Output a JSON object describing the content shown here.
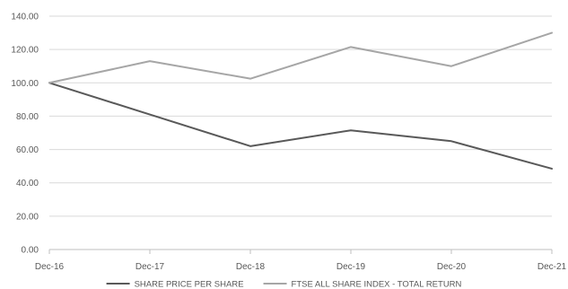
{
  "chart_data": {
    "type": "line",
    "categories": [
      "Dec-16",
      "Dec-17",
      "Dec-18",
      "Dec-19",
      "Dec-20",
      "Dec-21"
    ],
    "ylim": [
      0,
      140
    ],
    "yticks": [
      "0.00",
      "20.00",
      "40.00",
      "60.00",
      "80.00",
      "100.00",
      "120.00",
      "140.00"
    ],
    "grid": true,
    "legend_position": "bottom",
    "series": [
      {
        "name": "SHARE PRICE PER SHARE",
        "color": "#595959",
        "values": [
          100,
          81,
          62,
          71.5,
          65,
          48.5
        ]
      },
      {
        "name": "FTSE ALL SHARE INDEX - TOTAL RETURN",
        "color": "#a6a6a6",
        "values": [
          100,
          113,
          102.5,
          121.5,
          110,
          130
        ]
      }
    ]
  }
}
